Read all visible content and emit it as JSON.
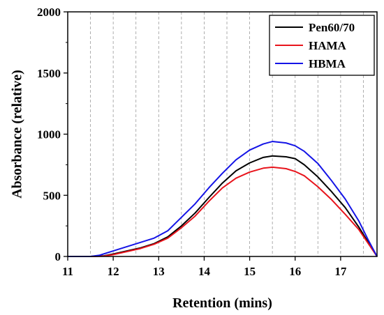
{
  "chart_data": {
    "type": "line",
    "xlabel": "Retention (mins)",
    "ylabel": "Absorbance (relative)",
    "xlim": [
      11,
      17.8
    ],
    "ylim": [
      0,
      2000
    ],
    "x_ticks": [
      "11",
      "12",
      "13",
      "14",
      "15",
      "16",
      "17"
    ],
    "y_ticks": [
      "0",
      "500",
      "1000",
      "1500",
      "2000"
    ],
    "x_gridlines": [
      11.5,
      12,
      12.5,
      13,
      13.5,
      14,
      14.5,
      15,
      15.5,
      16,
      16.5,
      17,
      17.5
    ],
    "legend_position": "top-right",
    "series": [
      {
        "name": "Pen60/70",
        "color": "#000000",
        "points": [
          [
            11.0,
            0
          ],
          [
            11.5,
            0
          ],
          [
            11.8,
            5
          ],
          [
            12.0,
            20
          ],
          [
            12.3,
            45
          ],
          [
            12.6,
            70
          ],
          [
            12.9,
            105
          ],
          [
            13.2,
            160
          ],
          [
            13.5,
            250
          ],
          [
            13.8,
            355
          ],
          [
            14.1,
            480
          ],
          [
            14.4,
            600
          ],
          [
            14.7,
            700
          ],
          [
            15.0,
            765
          ],
          [
            15.3,
            810
          ],
          [
            15.5,
            822
          ],
          [
            15.8,
            815
          ],
          [
            16.0,
            800
          ],
          [
            16.2,
            750
          ],
          [
            16.5,
            650
          ],
          [
            16.8,
            530
          ],
          [
            17.1,
            400
          ],
          [
            17.4,
            240
          ],
          [
            17.6,
            120
          ],
          [
            17.8,
            0
          ]
        ]
      },
      {
        "name": "HAMA",
        "color": "#e8141c",
        "points": [
          [
            11.0,
            0
          ],
          [
            11.5,
            0
          ],
          [
            11.8,
            3
          ],
          [
            12.0,
            15
          ],
          [
            12.3,
            40
          ],
          [
            12.6,
            65
          ],
          [
            12.9,
            100
          ],
          [
            13.2,
            150
          ],
          [
            13.5,
            235
          ],
          [
            13.8,
            330
          ],
          [
            14.1,
            450
          ],
          [
            14.4,
            560
          ],
          [
            14.7,
            640
          ],
          [
            15.0,
            690
          ],
          [
            15.3,
            722
          ],
          [
            15.5,
            730
          ],
          [
            15.8,
            718
          ],
          [
            16.0,
            695
          ],
          [
            16.2,
            660
          ],
          [
            16.5,
            570
          ],
          [
            16.8,
            465
          ],
          [
            17.1,
            345
          ],
          [
            17.4,
            220
          ],
          [
            17.6,
            110
          ],
          [
            17.8,
            0
          ]
        ]
      },
      {
        "name": "HBMA",
        "color": "#1414e6",
        "points": [
          [
            11.0,
            0
          ],
          [
            11.5,
            0
          ],
          [
            11.7,
            10
          ],
          [
            12.0,
            45
          ],
          [
            12.3,
            80
          ],
          [
            12.6,
            115
          ],
          [
            12.9,
            150
          ],
          [
            13.2,
            210
          ],
          [
            13.5,
            320
          ],
          [
            13.8,
            430
          ],
          [
            14.1,
            560
          ],
          [
            14.4,
            680
          ],
          [
            14.7,
            790
          ],
          [
            15.0,
            870
          ],
          [
            15.3,
            920
          ],
          [
            15.5,
            940
          ],
          [
            15.8,
            928
          ],
          [
            16.0,
            905
          ],
          [
            16.2,
            860
          ],
          [
            16.5,
            760
          ],
          [
            16.8,
            620
          ],
          [
            17.1,
            470
          ],
          [
            17.4,
            290
          ],
          [
            17.6,
            140
          ],
          [
            17.8,
            0
          ]
        ]
      }
    ]
  }
}
